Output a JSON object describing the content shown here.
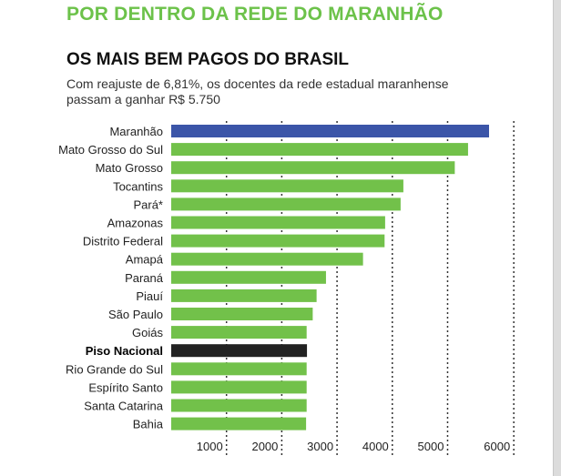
{
  "header": {
    "title": "POR DENTRO DA REDE DO MARANHÃO"
  },
  "chart_data": {
    "type": "bar",
    "orientation": "horizontal",
    "title": "OS MAIS BEM PAGOS DO BRASIL",
    "subtitle": "Com reajuste de 6,81%, os docentes da rede estadual maranhense passam a ganhar R$ 5.750",
    "categories": [
      "Maranhão",
      "Mato Grosso do Sul",
      "Mato Grosso",
      "Tocantins",
      "Pará*",
      "Amazonas",
      "Distrito Federal",
      "Amapá",
      "Paraná",
      "Piauí",
      "São Paulo",
      "Goiás",
      "Piso Nacional",
      "Rio Grande do Sul",
      "Espírito Santo",
      "Santa Catarina",
      "Bahia"
    ],
    "values": [
      5750,
      5370,
      5130,
      4200,
      4150,
      3870,
      3860,
      3470,
      2800,
      2630,
      2560,
      2450,
      2456,
      2450,
      2450,
      2450,
      2440
    ],
    "bar_colors": [
      "#3b55a8",
      "#72c14a",
      "#72c14a",
      "#72c14a",
      "#72c14a",
      "#72c14a",
      "#72c14a",
      "#72c14a",
      "#72c14a",
      "#72c14a",
      "#72c14a",
      "#72c14a",
      "#222222",
      "#72c14a",
      "#72c14a",
      "#72c14a",
      "#72c14a"
    ],
    "bold_categories": [
      "Piso Nacional"
    ],
    "xticks": [
      1000,
      2000,
      3000,
      4000,
      5000,
      6000
    ],
    "xtick_labels": [
      "1000",
      "2000",
      "3000",
      "4000",
      "5000",
      "6000"
    ],
    "xlim": [
      0,
      6000
    ],
    "grid": "vertical dotted"
  }
}
